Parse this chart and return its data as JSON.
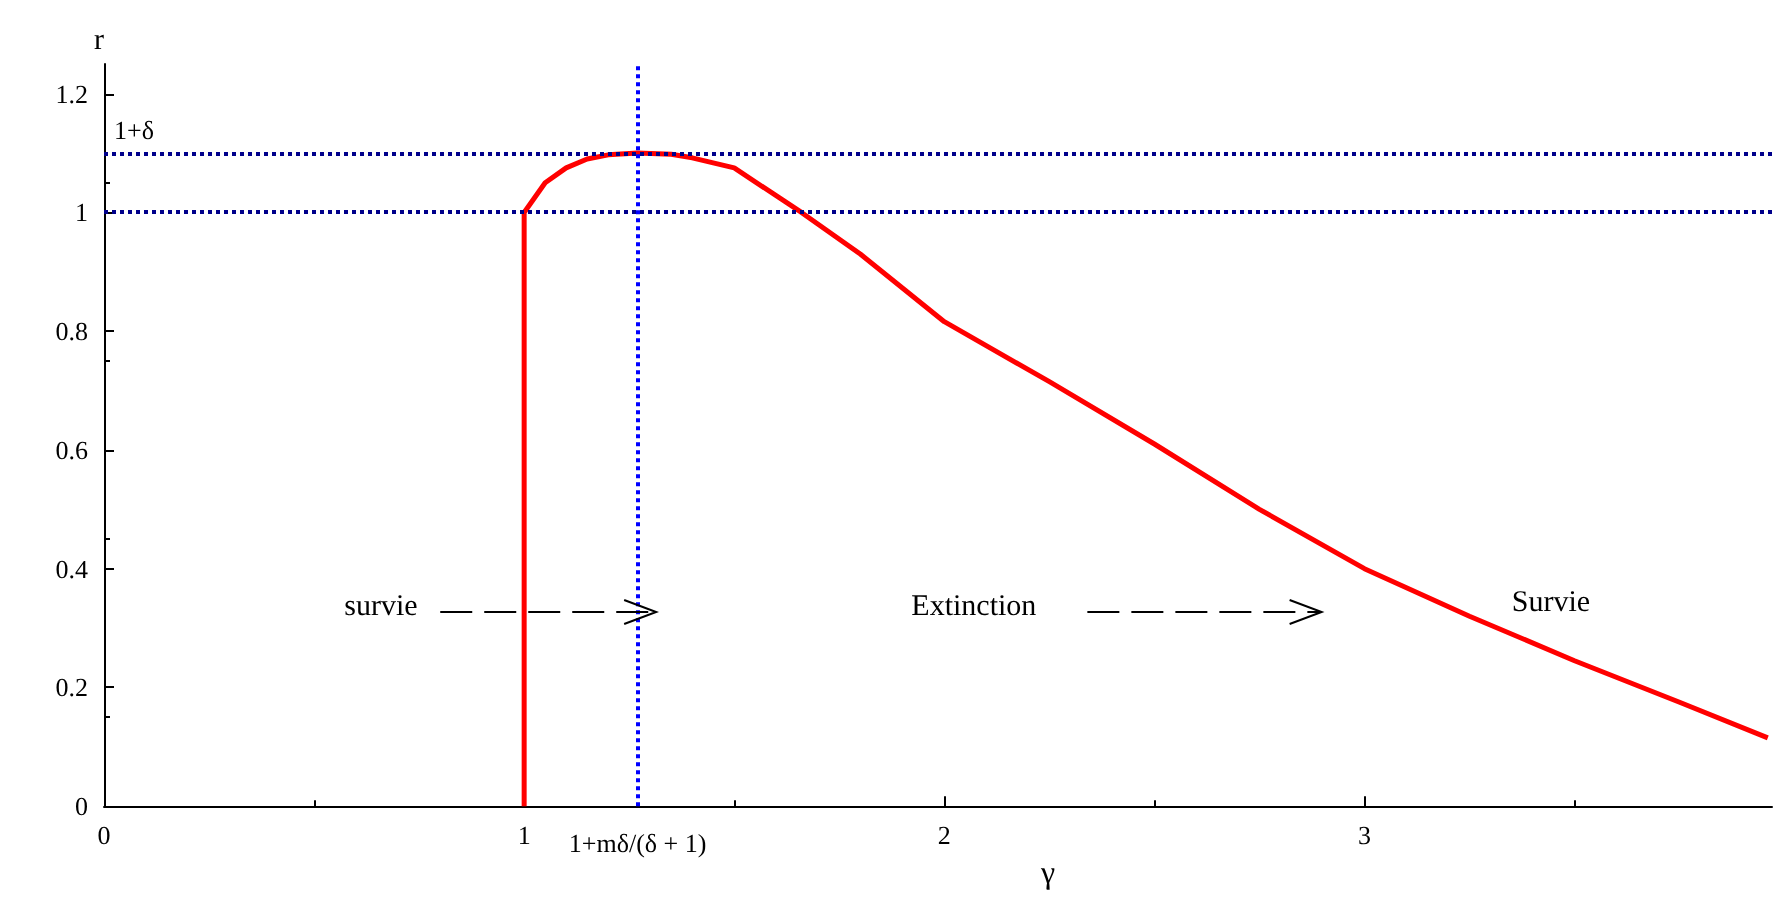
{
  "chart_data": {
    "type": "line",
    "xlabel": "γ",
    "ylabel": "r",
    "series": [
      {
        "color": "#ff0000",
        "x": [
          1,
          1,
          1.05,
          1.1,
          1.15,
          1.2,
          1.27,
          1.35,
          1.4,
          1.5,
          1.66,
          1.8,
          2.0,
          2.25,
          2.5,
          2.75,
          3.0,
          3.25,
          3.5,
          3.75,
          3.96
        ],
        "values": [
          0,
          1,
          1.05,
          1.075,
          1.09,
          1.097,
          1.1,
          1.098,
          1.092,
          1.075,
          1.0,
          0.93,
          0.816,
          0.715,
          0.61,
          0.5,
          0.4,
          0.32,
          0.245,
          0.175,
          0.115
        ]
      }
    ],
    "xlim": [
      0,
      3.97
    ],
    "ylim": [
      0,
      1.25
    ],
    "xticks": [
      0,
      1,
      2,
      3
    ],
    "yticks": [
      0,
      0.2,
      0.4,
      0.6,
      0.8,
      1,
      1.2
    ],
    "ref_lines": [
      {
        "axis": "y",
        "value": 1.1,
        "label": "1+δ",
        "color": "#00008b",
        "line_style": "dotted"
      },
      {
        "axis": "y",
        "value": 1,
        "label": null,
        "color": "#00008b",
        "line_style": "dotted"
      },
      {
        "axis": "x",
        "value": 1.27,
        "label": "1+mδ/(δ + 1)",
        "color": "#0000ff",
        "line_style": "dotted"
      }
    ],
    "annotations": [
      "survie",
      "Extinction",
      "Survie"
    ],
    "grid": false,
    "marker": "none",
    "line_style": "solid"
  }
}
